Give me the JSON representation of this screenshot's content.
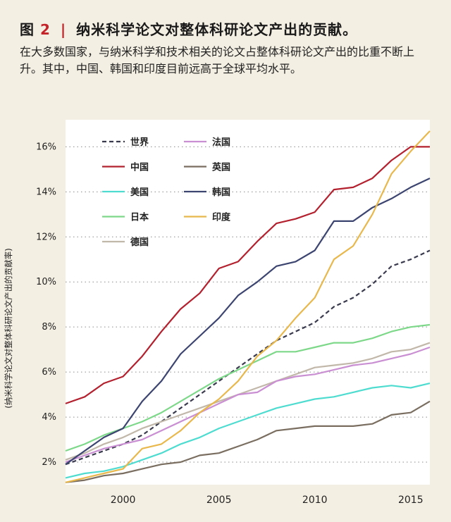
{
  "header": {
    "fig_label": "图",
    "fig_number": "2",
    "separator": "|",
    "title": "纳米科学论文对整体科研论文产出的贡献。",
    "subtitle": "在大多数国家，与纳米科学和技术相关的论文占整体科研论文产出的比重不断上升。其中，中国、韩国和印度目前远高于全球平均水平。"
  },
  "chart_data": {
    "type": "line",
    "ylabel": "(纳米科学论文对整体科研论文产出的贡献率)",
    "xlabel": "",
    "x": [
      1997,
      1998,
      1999,
      2000,
      2001,
      2002,
      2003,
      2004,
      2005,
      2006,
      2007,
      2008,
      2009,
      2010,
      2011,
      2012,
      2013,
      2014,
      2015,
      2016
    ],
    "xticks": [
      2000,
      2005,
      2010,
      2015
    ],
    "xlim": [
      1997,
      2016
    ],
    "ylim": [
      1,
      17.2
    ],
    "yticks": [
      2,
      4,
      6,
      8,
      10,
      12,
      14,
      16
    ],
    "ytick_labels": [
      "2%",
      "4%",
      "6%",
      "8%",
      "10%",
      "12%",
      "14%",
      "16%"
    ],
    "grid": "horizontal dotted",
    "legend_position": "top-left",
    "series": [
      {
        "name": "世界",
        "color": "#3a3a4e",
        "dash": true,
        "values": [
          1.9,
          2.2,
          2.5,
          2.8,
          3.2,
          3.8,
          4.4,
          5.0,
          5.6,
          6.2,
          6.8,
          7.4,
          7.8,
          8.2,
          8.9,
          9.3,
          9.9,
          10.7,
          11.0,
          11.4
        ]
      },
      {
        "name": "中国",
        "color": "#b3202e",
        "values": [
          4.6,
          4.9,
          5.5,
          5.8,
          6.7,
          7.8,
          8.8,
          9.5,
          10.6,
          10.9,
          11.8,
          12.6,
          12.8,
          13.1,
          14.1,
          14.2,
          14.6,
          15.4,
          16.0,
          16.0
        ]
      },
      {
        "name": "美国",
        "color": "#4fdcd0",
        "values": [
          1.3,
          1.5,
          1.6,
          1.8,
          2.1,
          2.4,
          2.8,
          3.1,
          3.5,
          3.8,
          4.1,
          4.4,
          4.6,
          4.8,
          4.9,
          5.1,
          5.3,
          5.4,
          5.3,
          5.5
        ]
      },
      {
        "name": "日本",
        "color": "#7ed88a",
        "values": [
          2.5,
          2.8,
          3.2,
          3.5,
          3.8,
          4.2,
          4.7,
          5.2,
          5.7,
          6.1,
          6.5,
          6.9,
          6.9,
          7.1,
          7.3,
          7.3,
          7.5,
          7.8,
          8.0,
          8.1
        ]
      },
      {
        "name": "德国",
        "color": "#c2b8aa",
        "values": [
          2.1,
          2.4,
          2.8,
          3.1,
          3.5,
          3.8,
          4.1,
          4.4,
          4.7,
          5.0,
          5.3,
          5.6,
          5.9,
          6.2,
          6.3,
          6.4,
          6.6,
          6.9,
          7.0,
          7.3
        ]
      },
      {
        "name": "法国",
        "color": "#c98fd2",
        "values": [
          2.0,
          2.3,
          2.6,
          2.8,
          3.0,
          3.4,
          3.8,
          4.2,
          4.6,
          5.0,
          5.1,
          5.6,
          5.8,
          5.9,
          6.1,
          6.3,
          6.4,
          6.6,
          6.8,
          7.1
        ]
      },
      {
        "name": "英国",
        "color": "#7a6e60",
        "values": [
          1.1,
          1.2,
          1.4,
          1.5,
          1.7,
          1.9,
          2.0,
          2.3,
          2.4,
          2.7,
          3.0,
          3.4,
          3.5,
          3.6,
          3.6,
          3.6,
          3.7,
          4.1,
          4.2,
          4.7
        ]
      },
      {
        "name": "韩国",
        "color": "#3c4470",
        "values": [
          1.9,
          2.5,
          3.1,
          3.5,
          4.7,
          5.6,
          6.8,
          7.6,
          8.4,
          9.4,
          10.0,
          10.7,
          10.9,
          11.4,
          12.7,
          12.7,
          13.3,
          13.7,
          14.2,
          14.6
        ]
      },
      {
        "name": "印度",
        "color": "#e8b84c",
        "values": [
          1.1,
          1.3,
          1.5,
          1.7,
          2.6,
          2.8,
          3.4,
          4.2,
          4.8,
          5.6,
          6.7,
          7.4,
          8.4,
          9.3,
          11.0,
          11.6,
          13.0,
          14.8,
          15.8,
          16.7
        ]
      }
    ]
  }
}
